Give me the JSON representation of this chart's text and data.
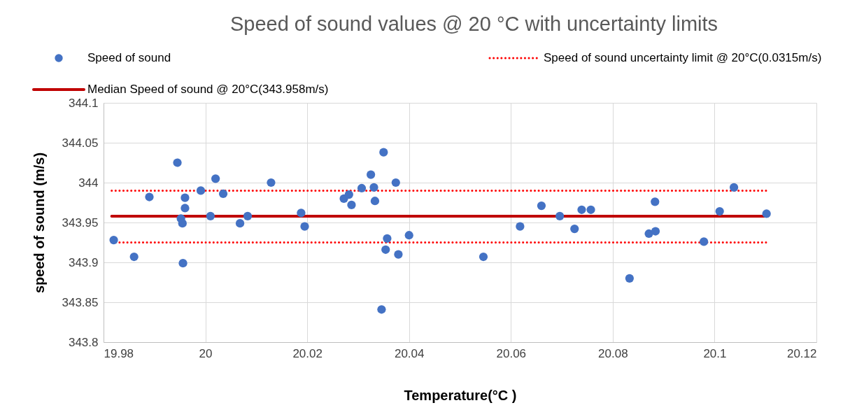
{
  "chart_data": {
    "type": "scatter",
    "title": "Speed of sound values @ 20 °C  with uncertainty limits",
    "xlabel": "Temperature(°C )",
    "ylabel": "speed of sound (m/s)",
    "xlim": [
      19.98,
      20.12
    ],
    "xticks": [
      19.98,
      20,
      20.02,
      20.04,
      20.06,
      20.08,
      20.1,
      20.12
    ],
    "ylim": [
      343.8,
      344.1
    ],
    "yticks": [
      343.8,
      343.85,
      343.9,
      343.95,
      344,
      344.05,
      344.1
    ],
    "grid": true,
    "legend": "top",
    "series": [
      {
        "name": "Speed of sound",
        "marker": "circle",
        "color": "#4472c4",
        "x": [
          19.982,
          19.986,
          19.989,
          19.9945,
          19.996,
          19.996,
          19.9952,
          19.9955,
          19.9956,
          19.9991,
          20.001,
          20.002,
          20.0035,
          20.0068,
          20.0083,
          20.0129,
          20.0188,
          20.0195,
          20.0272,
          20.0282,
          20.0287,
          20.0307,
          20.0325,
          20.0331,
          20.0333,
          20.035,
          20.0374,
          20.0346,
          20.0357,
          20.0354,
          20.0379,
          20.04,
          20.0546,
          20.0618,
          20.066,
          20.0696,
          20.0725,
          20.0739,
          20.0757,
          20.0833,
          20.0871,
          20.0884,
          20.0883,
          20.0979,
          20.101,
          20.1038,
          20.1102
        ],
        "values": [
          343.928,
          343.907,
          343.982,
          344.025,
          343.981,
          343.968,
          343.955,
          343.949,
          343.899,
          343.99,
          343.958,
          344.005,
          343.986,
          343.949,
          343.958,
          344.0,
          343.962,
          343.945,
          343.98,
          343.985,
          343.972,
          343.993,
          344.01,
          343.994,
          343.977,
          344.038,
          344.0,
          343.841,
          343.93,
          343.916,
          343.91,
          343.934,
          343.907,
          343.945,
          343.971,
          343.958,
          343.942,
          343.966,
          343.966,
          343.88,
          343.936,
          343.939,
          343.976,
          343.926,
          343.964,
          343.994,
          343.961
        ]
      },
      {
        "name": "Speed of sound uncertainty limit @ 20°C(0.0315m/s)",
        "type": "line",
        "line_style": "dotted",
        "color": "#ff0000",
        "x": [
          19.9816,
          20.1104
        ],
        "values": [
          343.99,
          343.99
        ]
      },
      {
        "type": "line",
        "line_style": "dotted",
        "color": "#ff0000",
        "x": [
          19.9816,
          20.1104
        ],
        "values": [
          343.925,
          343.925
        ]
      },
      {
        "name": "Median Speed of sound @ 20°C(343.958m/s)",
        "type": "line",
        "line_style": "solid",
        "color": "#c00000",
        "x": [
          19.9816,
          20.1104
        ],
        "values": [
          343.958,
          343.958
        ]
      }
    ]
  }
}
